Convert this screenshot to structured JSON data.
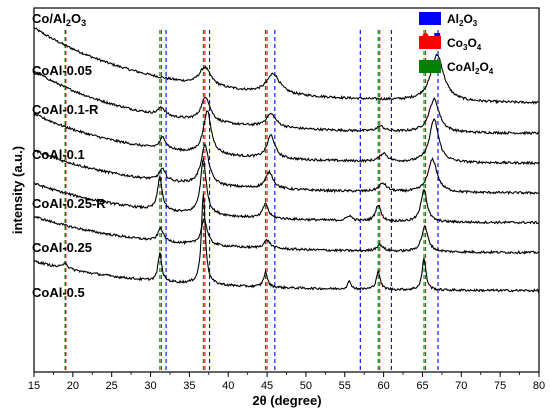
{
  "chart_data": {
    "type": "line",
    "title": "",
    "xlabel": "2θ (degree)",
    "ylabel": "intensity (a.u.)",
    "xlim": [
      15,
      80
    ],
    "xticks": [
      15,
      20,
      25,
      30,
      35,
      40,
      45,
      50,
      55,
      60,
      65,
      70,
      75,
      80
    ],
    "grid": false,
    "legend_position": "top-right",
    "legend": [
      {
        "label_main": "Al",
        "label_sub1": "2",
        "label_mid": "O",
        "label_sub2": "3",
        "color": "#0000ff"
      },
      {
        "label_main": "Co",
        "label_sub1": "3",
        "label_mid": "O",
        "label_sub2": "4",
        "color": "#ff0000"
      },
      {
        "label_main": "CoAl",
        "label_sub1": "2",
        "label_mid": "O",
        "label_sub2": "4",
        "color": "#008000"
      }
    ],
    "reference_lines": [
      {
        "phase": "CoAl2O4",
        "color": "#008000",
        "positions": [
          19.0,
          31.2,
          36.8,
          44.8,
          59.3,
          65.2
        ]
      },
      {
        "phase": "Co3O4",
        "color": "#ff0000",
        "positions": [
          19.1,
          31.4,
          37.0,
          45.0,
          59.5,
          65.4
        ]
      },
      {
        "phase": "Al2O3",
        "color": "#0000ff",
        "positions": [
          32.0,
          37.6,
          46.0,
          57.0,
          61.0,
          67.0
        ]
      }
    ],
    "markers": [
      {
        "symbol": "circle",
        "color": "#ff0000",
        "x": 65.4
      },
      {
        "symbol": "square",
        "color": "#0000ff",
        "x": 66.9
      }
    ],
    "series": [
      {
        "name": "Co/Al2O3",
        "label_main": "Co/Al",
        "label_sub1": "2",
        "label_mid": "O",
        "label_sub2": "3",
        "offset": 16.2,
        "background": {
          "start": 4.6,
          "decay": 0.065
        },
        "peaks": [
          [
            37.0,
            1.1,
            0.9
          ],
          [
            45.8,
            1.2,
            1.0
          ],
          [
            66.9,
            2.8,
            1.0
          ]
        ],
        "noise": 0.07
      },
      {
        "name": "CoAl-0.05",
        "offset": 14.4,
        "background": {
          "start": 3.8,
          "decay": 0.075
        },
        "peaks": [
          [
            31.4,
            0.5,
            0.5
          ],
          [
            37.1,
            1.5,
            0.7
          ],
          [
            45.5,
            0.8,
            0.8
          ],
          [
            59.6,
            0.3,
            0.6
          ],
          [
            66.5,
            2.0,
            0.8
          ]
        ],
        "noise": 0.07
      },
      {
        "name": "CoAl-0.1-R",
        "offset": 12.6,
        "background": {
          "start": 3.0,
          "decay": 0.075
        },
        "peaks": [
          [
            31.6,
            0.7,
            0.5
          ],
          [
            37.3,
            2.6,
            0.6
          ],
          [
            45.5,
            1.4,
            0.6
          ],
          [
            60.0,
            0.5,
            0.6
          ],
          [
            66.5,
            2.6,
            0.7
          ]
        ],
        "noise": 0.07
      },
      {
        "name": "CoAl-0.1",
        "offset": 10.8,
        "background": {
          "start": 2.6,
          "decay": 0.075
        },
        "peaks": [
          [
            31.5,
            0.7,
            0.5
          ],
          [
            37.0,
            2.4,
            0.6
          ],
          [
            45.3,
            1.0,
            0.6
          ],
          [
            59.9,
            0.5,
            0.6
          ],
          [
            66.3,
            2.0,
            0.7
          ]
        ],
        "noise": 0.07
      },
      {
        "name": "CoAl-0.25-R",
        "offset": 9.0,
        "background": {
          "start": 2.4,
          "decay": 0.07
        },
        "peaks": [
          [
            31.2,
            2.0,
            0.35
          ],
          [
            36.8,
            3.3,
            0.45
          ],
          [
            44.8,
            0.9,
            0.4
          ],
          [
            55.6,
            0.3,
            0.4
          ],
          [
            59.3,
            1.0,
            0.4
          ],
          [
            65.2,
            2.0,
            0.45
          ]
        ],
        "noise": 0.07
      },
      {
        "name": "CoAl-0.25",
        "offset": 7.2,
        "background": {
          "start": 2.2,
          "decay": 0.07
        },
        "peaks": [
          [
            31.3,
            0.8,
            0.4
          ],
          [
            36.9,
            1.6,
            0.45
          ],
          [
            45.0,
            0.5,
            0.5
          ],
          [
            59.5,
            0.4,
            0.5
          ],
          [
            65.3,
            1.5,
            0.5
          ]
        ],
        "noise": 0.07
      },
      {
        "name": "CoAl-0.5",
        "offset": 4.9,
        "background": {
          "start": 1.8,
          "decay": 0.07
        },
        "peaks": [
          [
            19.0,
            0.4,
            0.3
          ],
          [
            31.2,
            1.7,
            0.28
          ],
          [
            36.8,
            5.5,
            0.3
          ],
          [
            44.8,
            0.9,
            0.3
          ],
          [
            55.6,
            0.45,
            0.3
          ],
          [
            59.3,
            1.1,
            0.3
          ],
          [
            65.2,
            1.9,
            0.3
          ]
        ],
        "noise": 0.07
      }
    ]
  }
}
